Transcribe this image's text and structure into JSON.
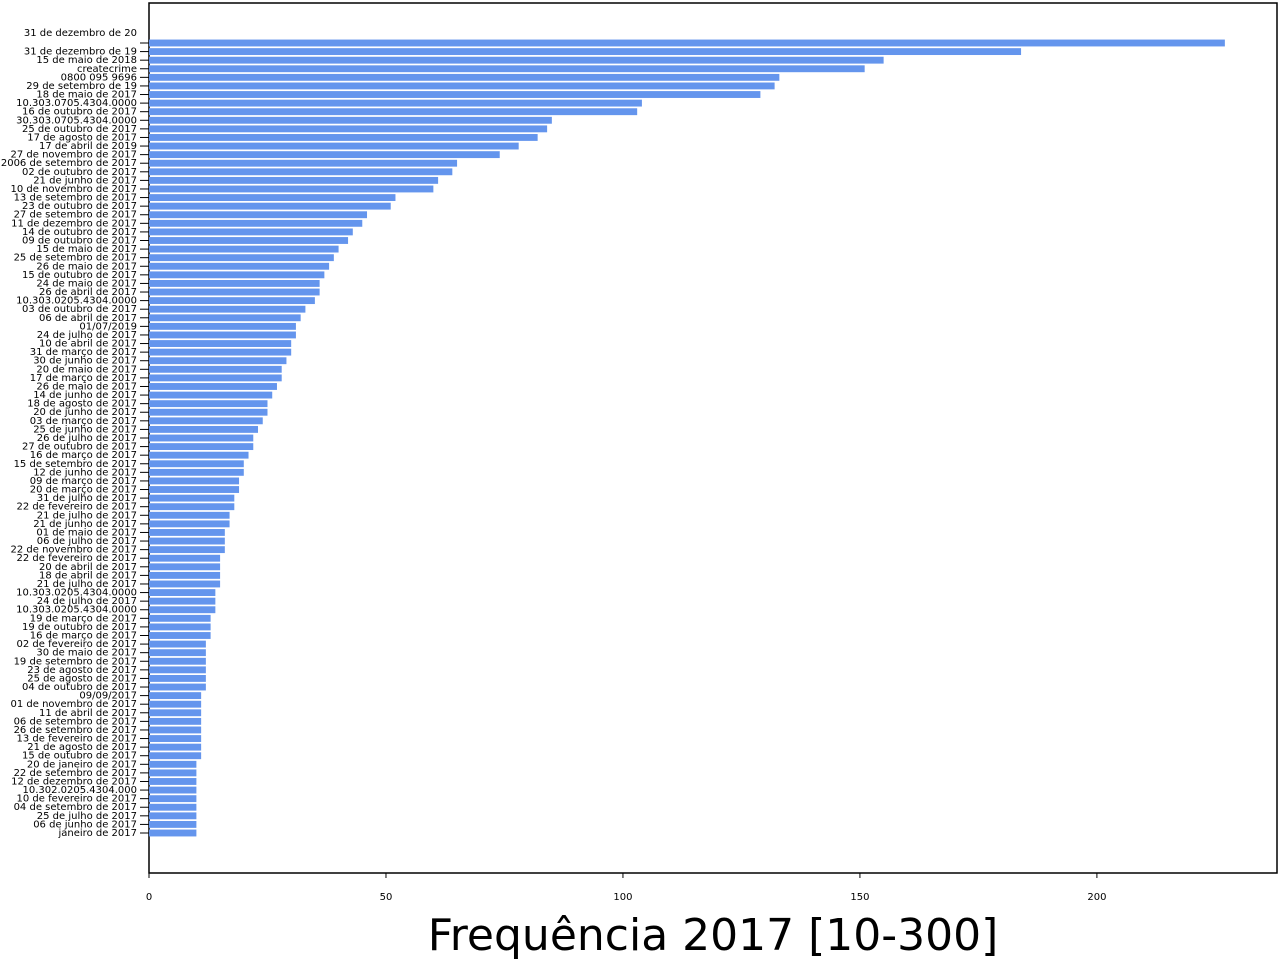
{
  "chart_data": {
    "type": "bar",
    "orientation": "horizontal",
    "xlabel": "Frequência 2017 [10-300]",
    "ylabel": "",
    "xlim": [
      0,
      238
    ],
    "xticks": [
      0,
      50,
      100,
      150,
      200
    ],
    "grid": false,
    "bar_color": "#6495ed",
    "categories": [
      "31 de dezembro de 20",
      "31 de dezembro de 19",
      "15 de maio de 2018",
      "createcrime",
      "0800 095 9696",
      "29 de setembro de 19",
      "18 de maio de 2017",
      "10.303.0705.4304.0000",
      "16 de outubro de 2017",
      "30.303.0705.4304.0000",
      "25 de outubro de 2017",
      "17 de agosto de 2017",
      "17 de abril de 2019",
      "27 de novembro de 2017",
      "2006 de setembro de 2017",
      "02 de outubro de 2017",
      "21 de junho de 2017",
      "10 de novembro de 2017",
      "13 de setembro de 2017",
      "23 de outubro de 2017",
      "27 de setembro de 2017",
      "11 de dezembro de 2017",
      "14 de outubro de 2017",
      "09 de outubro de 2017",
      "15 de maio de 2017",
      "25 de setembro de 2017",
      "26 de maio de 2017",
      "15 de outubro de 2017",
      "24 de maio de 2017",
      "26 de abril de 2017",
      "10.303.0205.4304.0000",
      "03 de outubro de 2017",
      "06 de abril de 2017",
      "01/07/2019",
      "24 de julho de 2017",
      "10 de abril de 2017",
      "31 de março de 2017",
      "30 de junho de 2017",
      "20 de maio de 2017",
      "17 de março de 2017",
      "26 de maio de 2017",
      "14 de junho de 2017",
      "18 de agosto de 2017",
      "20 de junho de 2017",
      "03 de março de 2017",
      "25 de junho de 2017",
      "26 de julho de 2017",
      "27 de outubro de 2017",
      "16 de março de 2017",
      "15 de setembro de 2017",
      "12 de junho de 2017",
      "09 de março de 2017",
      "20 de março de 2017",
      "31 de julho de 2017",
      "22 de fevereiro de 2017",
      "21 de julho de 2017",
      "21 de junho de 2017",
      "01 de maio de 2017",
      "06 de julho de 2017",
      "22 de novembro de 2017",
      "22 de fevereiro de 2017",
      "20 de abril de 2017",
      "18 de abril de 2017",
      "21 de julho de 2017",
      "10.303.0205.4304.0000",
      "24 de julho de 2017",
      "10.303.0205.4304.0000",
      "19 de março de 2017",
      "19 de outubro de 2017",
      "16 de março de 2017",
      "02 de fevereiro de 2017",
      "30 de maio de 2017",
      "19 de setembro de 2017",
      "23 de agosto de 2017",
      "25 de agosto de 2017",
      "04 de outubro de 2017",
      "09/09/2017",
      "01 de novembro de 2017",
      "11 de abril de 2017",
      "06 de setembro de 2017",
      "26 de setembro de 2017",
      "13 de fevereiro de 2017",
      "21 de agosto de 2017",
      "15 de outubro de 2017",
      "20 de janeiro de 2017",
      "22 de setembro de 2017",
      "12 de dezembro de 2017",
      "10.302.0205.4304.000",
      "10 de fevereiro de 2017",
      "04 de setembro de 2017",
      "25 de julho de 2017",
      "06 de junho de 2017",
      "janeiro de 2017"
    ],
    "values": [
      227,
      184,
      155,
      151,
      133,
      132,
      129,
      104,
      103,
      85,
      84,
      82,
      78,
      74,
      65,
      64,
      61,
      60,
      52,
      51,
      46,
      45,
      43,
      42,
      40,
      39,
      38,
      37,
      36,
      36,
      35,
      33,
      32,
      31,
      31,
      30,
      30,
      29,
      28,
      28,
      27,
      26,
      25,
      25,
      24,
      23,
      22,
      22,
      21,
      20,
      20,
      19,
      19,
      18,
      18,
      17,
      17,
      16,
      16,
      16,
      15,
      15,
      15,
      15,
      14,
      14,
      14,
      13,
      13,
      13,
      12,
      12,
      12,
      12,
      12,
      12,
      11,
      11,
      11,
      11,
      11,
      11,
      11,
      11,
      10,
      10,
      10,
      10,
      10,
      10,
      10,
      10,
      10
    ]
  }
}
